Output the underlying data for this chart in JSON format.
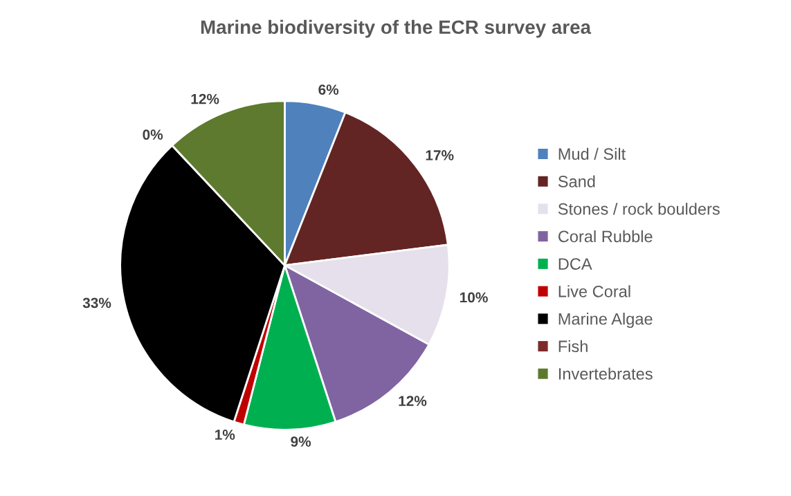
{
  "chart_data": {
    "type": "pie",
    "title": "Marine biodiversity of the ECR survey area",
    "categories": [
      "Mud / Silt",
      "Sand",
      "Stones / rock boulders",
      "Coral Rubble",
      "DCA",
      "Live Coral",
      "Marine Algae",
      "Fish",
      "Invertebrates"
    ],
    "values": [
      6,
      17,
      10,
      12,
      9,
      1,
      33,
      0,
      12
    ],
    "value_labels": [
      "6%",
      "17%",
      "10%",
      "12%",
      "9%",
      "1%",
      "33%",
      "0%",
      "12%"
    ],
    "colors": [
      "#4f81bd",
      "#632523",
      "#e6e0ec",
      "#8064a2",
      "#00b050",
      "#c00000",
      "#000000",
      "#7f2a2a",
      "#5e7a2e"
    ],
    "legend": "right"
  }
}
